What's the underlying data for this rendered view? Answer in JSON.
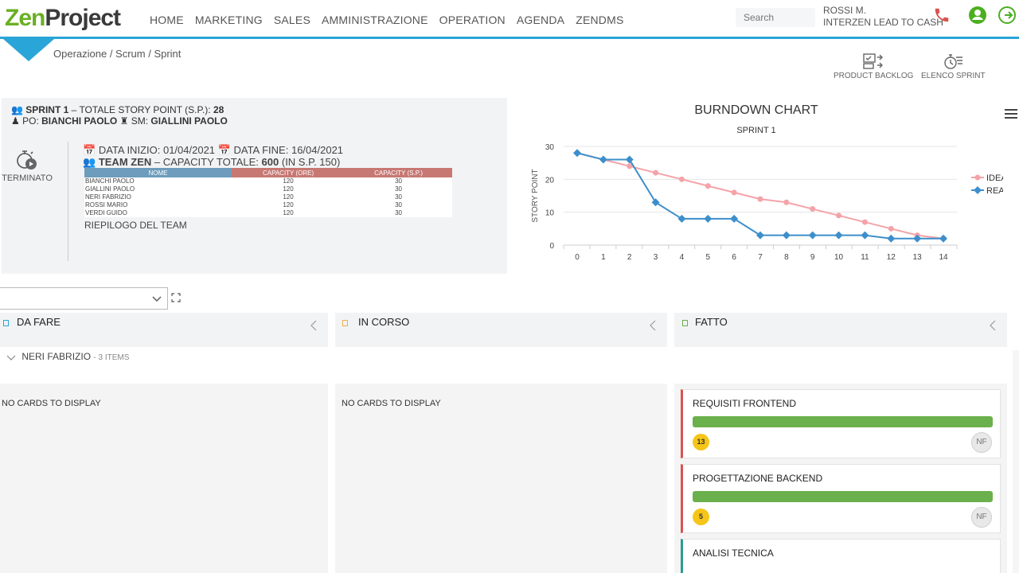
{
  "app": {
    "logo_a": "Zen",
    "logo_b": "Project"
  },
  "nav": [
    "HOME",
    "MARKETING",
    "SALES",
    "AMMINISTRAZIONE",
    "OPERATION",
    "AGENDA",
    "ZENDMS"
  ],
  "search": {
    "placeholder": "Search"
  },
  "user": {
    "name": "ROSSI M.",
    "company": "INTERZEN LEAD TO CASH"
  },
  "colors": {
    "accent": "#2aa5d8",
    "brand": "#6ab023",
    "ideal": "#f4a3a8",
    "real": "#3d8fcb"
  },
  "breadcrumb": "Operazione / Scrum / Sprint",
  "tools": {
    "backlog": "PRODUCT BACKLOG",
    "sprints": "ELENCO SPRINT"
  },
  "sprint": {
    "name": "SPRINT 1",
    "sp_label": "– TOTALE STORY POINT (S.P.):",
    "sp_total": "28",
    "po_label": "PO:",
    "po": "BIANCHI PAOLO",
    "sm_label": "SM:",
    "sm": "GIALLINI PAOLO",
    "status": "TERMINATO",
    "start_label": "DATA INIZIO:",
    "start": "01/04/2021",
    "end_label": "DATA FINE:",
    "end": "16/04/2021",
    "team": "TEAM ZEN",
    "capacity_label": "– CAPACITY TOTALE:",
    "capacity": "600",
    "capacity_sp": "(IN S.P. 150)",
    "summary": "RIEPILOGO DEL TEAM"
  },
  "team_table": {
    "headers": [
      "NOME",
      "CAPACITY (ORE)",
      "CAPACITY (S.P.)"
    ],
    "rows": [
      [
        "BIANCHI PAOLO",
        "120",
        "30"
      ],
      [
        "GIALLINI PAOLO",
        "120",
        "30"
      ],
      [
        "NERI FABRIZIO",
        "120",
        "30"
      ],
      [
        "ROSSI MARIO",
        "120",
        "30"
      ],
      [
        "VERDI GUIDO",
        "120",
        "30"
      ]
    ]
  },
  "chart_data": {
    "type": "line",
    "title": "BURNDOWN CHART",
    "subtitle": "SPRINT 1",
    "xlabel": "",
    "ylabel": "STORY POINT",
    "x": [
      0,
      1,
      2,
      3,
      4,
      5,
      6,
      7,
      8,
      9,
      10,
      11,
      12,
      13,
      14
    ],
    "ylim": [
      0,
      30
    ],
    "yticks": [
      0,
      10,
      20,
      30
    ],
    "legend": "right",
    "grid": true,
    "series": [
      {
        "name": "IDEALE",
        "color": "#f4a3a8",
        "values": [
          28,
          26,
          24,
          22,
          20,
          18,
          16,
          14,
          13,
          11,
          9,
          7,
          5,
          3,
          2
        ]
      },
      {
        "name": "REALE",
        "color": "#3d8fcb",
        "values": [
          28,
          26,
          26,
          13,
          8,
          8,
          8,
          3,
          3,
          3,
          3,
          3,
          2,
          2,
          2
        ]
      }
    ]
  },
  "board": {
    "columns": [
      {
        "label": "DA FARE",
        "color": "#2aa5d8"
      },
      {
        "label": "IN CORSO",
        "color": "#f0ad4e"
      },
      {
        "label": "FATTO",
        "color": "#6ab04c"
      }
    ],
    "group": {
      "name": "NERI FABRIZIO",
      "count": "- 3 ITEMS"
    },
    "empty": "NO CARDS TO DISPLAY",
    "cards": [
      {
        "title": "REQUISITI FRONTEND",
        "points": "13",
        "assignee": "NF",
        "color": "#d9534f"
      },
      {
        "title": "PROGETTAZIONE BACKEND",
        "points": "5",
        "assignee": "NF",
        "color": "#d9534f"
      },
      {
        "title": "ANALISI TECNICA",
        "color": "#2a9d8f"
      }
    ]
  }
}
